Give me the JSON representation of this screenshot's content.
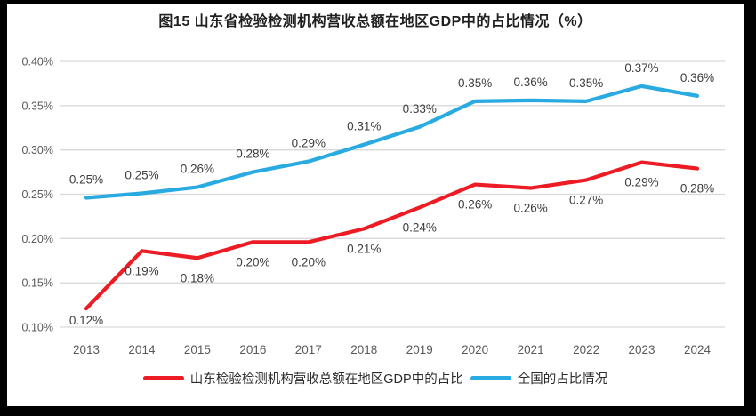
{
  "title": "图15  山东省检验检测机构营收总额在地区GDP中的占比情况（%）",
  "colors": {
    "shandong_red": "#ed1c24",
    "national_blue": "#29abe2",
    "gridline": "#d9d9d9",
    "axis_text": "#595959",
    "label_text": "#3d3d3d",
    "frame": "#000000",
    "background": "#ffffff"
  },
  "chart_data": {
    "type": "line",
    "title": "图15  山东省检验检测机构营收总额在地区GDP中的占比情况（%）",
    "categories": [
      "2013",
      "2014",
      "2015",
      "2016",
      "2017",
      "2018",
      "2019",
      "2020",
      "2021",
      "2022",
      "2023",
      "2024"
    ],
    "y_axis": {
      "min": 0.1,
      "max": 0.4,
      "tick_step": 0.05,
      "tick_labels": [
        "0.10%",
        "0.15%",
        "0.20%",
        "0.25%",
        "0.30%",
        "0.35%",
        "0.40%"
      ],
      "unit": "%"
    },
    "grid": true,
    "legend_position": "bottom",
    "series": [
      {
        "name": "山东检验检测机构营收总额在地区GDP中的占比",
        "color": "#ed1c24",
        "label_position": "below",
        "labels": [
          "0.12%",
          "0.19%",
          "0.18%",
          "0.20%",
          "0.20%",
          "0.21%",
          "0.24%",
          "0.26%",
          "0.26%",
          "0.27%",
          "0.29%",
          "0.28%"
        ],
        "values": [
          0.12,
          0.19,
          0.18,
          0.2,
          0.2,
          0.21,
          0.24,
          0.26,
          0.26,
          0.27,
          0.29,
          0.28
        ],
        "plot_values": [
          0.121,
          0.186,
          0.178,
          0.196,
          0.196,
          0.211,
          0.235,
          0.261,
          0.257,
          0.266,
          0.286,
          0.279
        ]
      },
      {
        "name": "全国的占比情况",
        "color": "#29abe2",
        "label_position": "above",
        "labels": [
          "0.25%",
          "0.25%",
          "0.26%",
          "0.28%",
          "0.29%",
          "0.31%",
          "0.33%",
          "0.35%",
          "0.36%",
          "0.35%",
          "0.37%",
          "0.36%"
        ],
        "values": [
          0.25,
          0.25,
          0.26,
          0.28,
          0.29,
          0.31,
          0.33,
          0.35,
          0.36,
          0.35,
          0.37,
          0.36
        ],
        "plot_values": [
          0.246,
          0.251,
          0.258,
          0.275,
          0.287,
          0.306,
          0.326,
          0.355,
          0.356,
          0.355,
          0.372,
          0.361
        ]
      }
    ]
  }
}
